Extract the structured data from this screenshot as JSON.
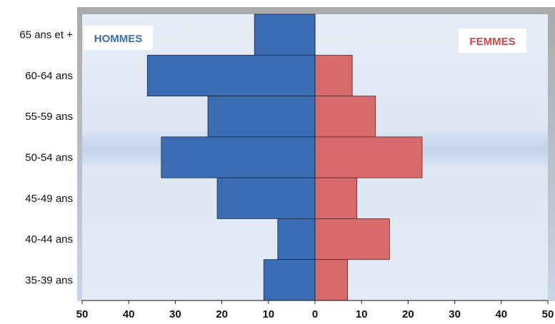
{
  "chart_data": {
    "type": "bar",
    "orientation": "horizontal",
    "categories": [
      "65 ans et +",
      "60-64 ans",
      "55-59 ans",
      "50-54 ans",
      "45-49 ans",
      "40-44 ans",
      "35-39 ans"
    ],
    "series": [
      {
        "name": "HOMMES",
        "values": [
          13,
          36,
          23,
          33,
          21,
          8,
          11
        ],
        "color": "#3b6db4",
        "side": "left"
      },
      {
        "name": "FEMMES",
        "values": [
          0,
          8,
          13,
          23,
          9,
          16,
          7
        ],
        "color": "#d76a6a",
        "side": "right"
      }
    ],
    "x_ticks": [
      50,
      40,
      30,
      20,
      10,
      0,
      10,
      20,
      30,
      40,
      50
    ],
    "xlim": [
      -50,
      50
    ],
    "legend": {
      "hommes_color": "#3b6db4",
      "femmes_color": "#c94646",
      "placement": "top-left and top-right"
    },
    "grid": false
  }
}
